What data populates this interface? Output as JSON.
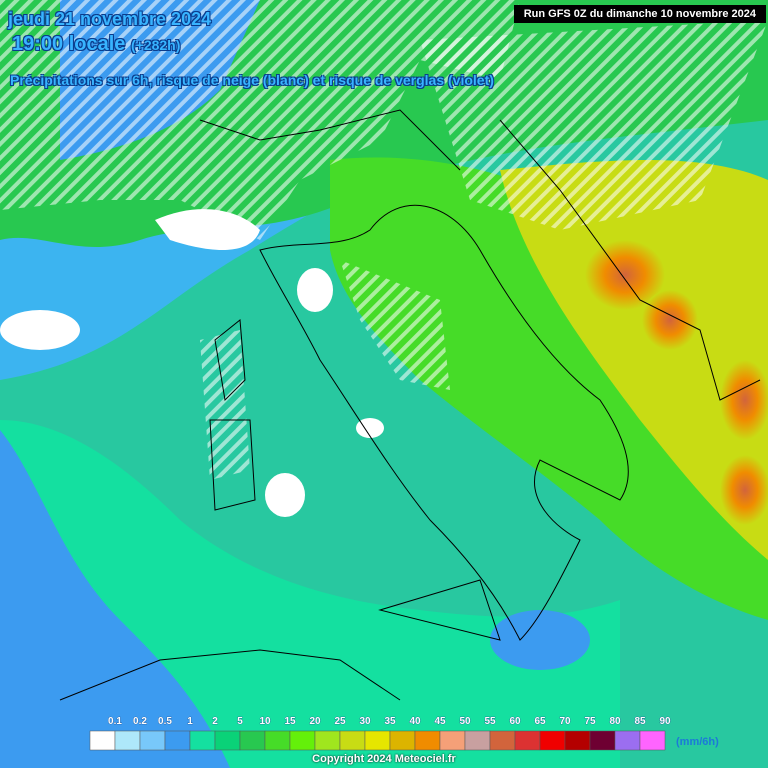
{
  "header": {
    "date": "jeudi 21 novembre 2024",
    "time": "19:00 locale",
    "lead": "(+282h)",
    "subtitle": "Précipitations sur 6h, risque de neige (blanc) et risque de verglas (violet)",
    "run": "Run GFS 0Z du dimanche 10 novembre 2024"
  },
  "legend": {
    "labels": [
      "0.1",
      "0.2",
      "0.5",
      "1",
      "2",
      "5",
      "10",
      "15",
      "20",
      "25",
      "30",
      "35",
      "40",
      "45",
      "50",
      "55",
      "60",
      "65",
      "70",
      "75",
      "80",
      "85",
      "90"
    ],
    "colors": [
      "#ffffff",
      "#aee8fa",
      "#78c8fa",
      "#3c9bf0",
      "#14e0a0",
      "#0ad278",
      "#28c850",
      "#46dc28",
      "#64f00a",
      "#a0e61e",
      "#c8dc14",
      "#e6e600",
      "#dcb400",
      "#f08c00",
      "#f5a078",
      "#c8a0a0",
      "#d2643c",
      "#dc3232",
      "#f00000",
      "#b40000",
      "#6e0032",
      "#9b6ef0",
      "#ff64ff"
    ],
    "unit": "(mm/6h)"
  },
  "footer": {
    "copyright": "Copyright 2024 Meteociel.fr"
  }
}
